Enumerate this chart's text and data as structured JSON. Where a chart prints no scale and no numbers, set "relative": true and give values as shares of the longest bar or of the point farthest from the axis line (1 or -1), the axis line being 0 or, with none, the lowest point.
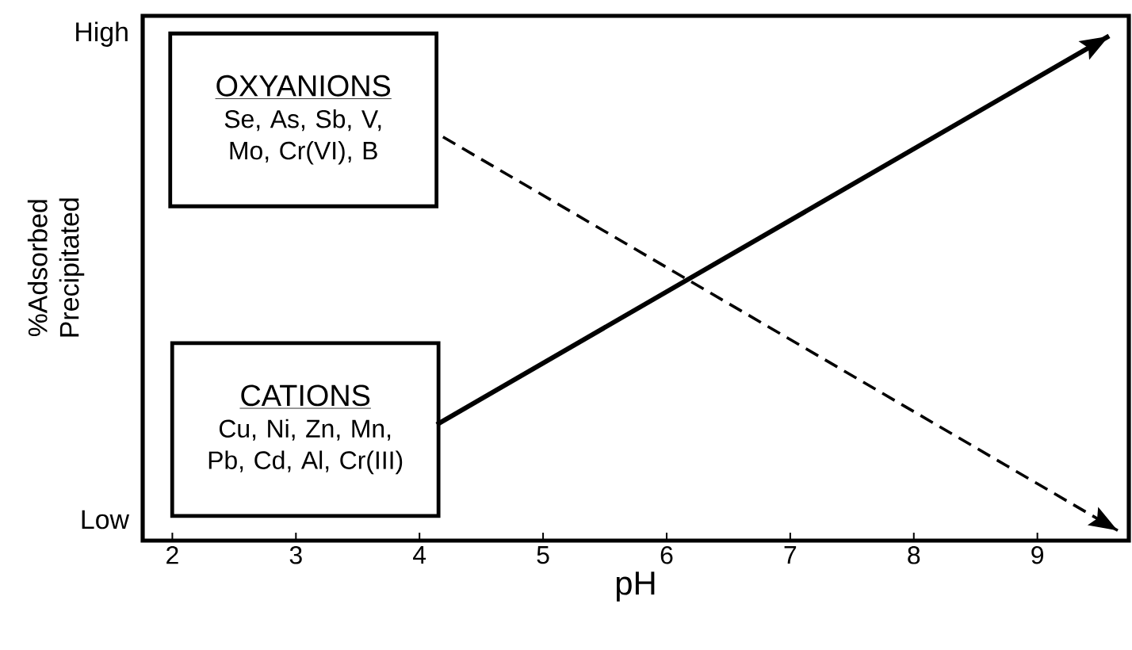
{
  "chart_data": {
    "type": "line",
    "relative": true,
    "xlabel": "pH",
    "ylabel": "%Adsorbed Precipitated",
    "xlim": [
      1.76,
      9.74
    ],
    "xticks": [
      2,
      3,
      4,
      5,
      6,
      7,
      8,
      9
    ],
    "series": [
      {
        "color": "#000000",
        "x": [
          4.14,
          9.58
        ],
        "values": [
          0.23,
          1
        ],
        "line_style": "solid"
      },
      {
        "color": "#000000",
        "x": [
          4.19,
          9.65
        ],
        "values": [
          0.8,
          0.02
        ],
        "line_style": "dashed"
      }
    ],
    "annotations": [
      "OXYANIONS",
      "Se, As, Sb, V, Mo, Cr(VI), B",
      "CATIONS",
      "Cu, Ni, Zn, Mn, Pb, Cd, Al, Cr(III)",
      "High",
      "Low"
    ],
    "grid": false,
    "marker": "none"
  }
}
